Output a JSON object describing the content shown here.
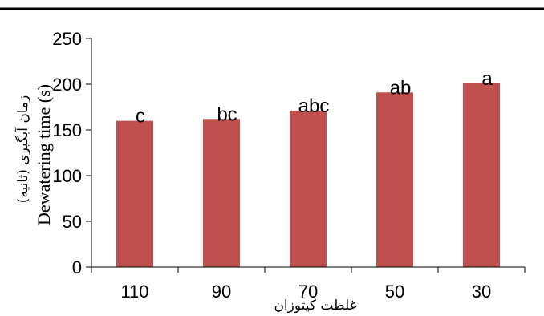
{
  "chart_data": {
    "type": "bar",
    "categories": [
      "110",
      "90",
      "70",
      "50",
      "30"
    ],
    "values": [
      160,
      162,
      171,
      191,
      201
    ],
    "data_labels": [
      "c",
      "bc",
      "abc",
      "ab",
      "a"
    ],
    "xlabel": "غلظت کیتوزان",
    "ylabel_fa": "زمان آبگیری (ثانیه)",
    "ylabel_en": "Dewatering time (s)",
    "yticks": [
      "0",
      "50",
      "100",
      "150",
      "200",
      "250"
    ],
    "ylim": [
      0,
      250
    ],
    "grid": false,
    "bar_color": "#C0504D",
    "top_rule_color": "#000000"
  }
}
